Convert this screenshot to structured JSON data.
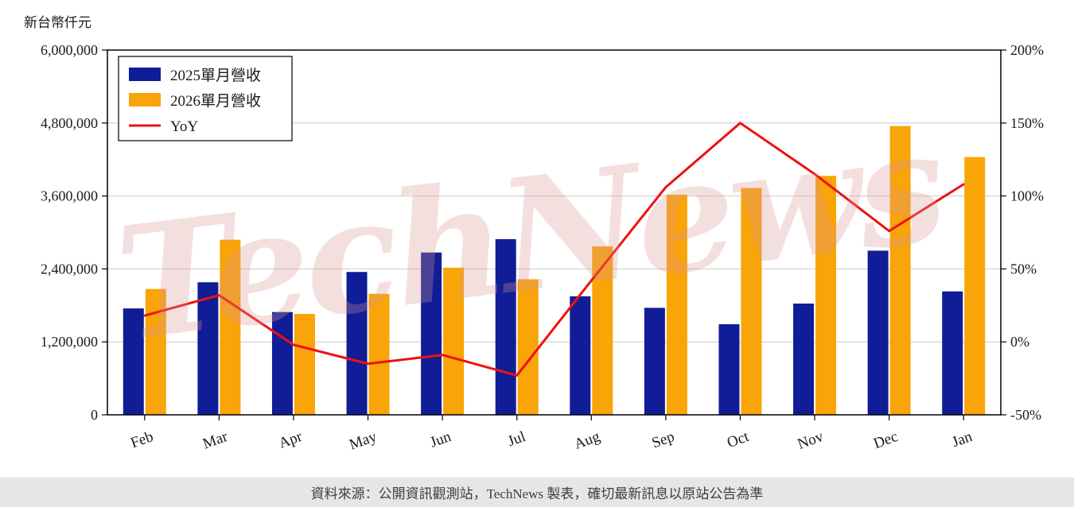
{
  "chart_data": {
    "type": "bar",
    "unit_label": "新台幣仟元",
    "categories": [
      "Feb",
      "Mar",
      "Apr",
      "May",
      "Jun",
      "Jul",
      "Aug",
      "Sep",
      "Oct",
      "Nov",
      "Dec",
      "Jan"
    ],
    "series": [
      {
        "name": "2025單月營收",
        "type": "bar",
        "axis": "left",
        "color": "#101d96",
        "values": [
          1750000,
          2180000,
          1690000,
          2350000,
          2670000,
          2890000,
          1950000,
          1760000,
          1490000,
          1830000,
          2700000,
          2030000
        ]
      },
      {
        "name": "2026單月營收",
        "type": "bar",
        "axis": "left",
        "color": "#f9a408",
        "values": [
          2070000,
          2880000,
          1660000,
          1990000,
          2420000,
          2230000,
          2770000,
          3620000,
          3730000,
          3930000,
          4750000,
          4240000
        ]
      },
      {
        "name": "YoY",
        "type": "line",
        "axis": "right",
        "color": "#ee1111",
        "values": [
          18,
          32,
          -2,
          -15,
          -9,
          -23,
          42,
          106,
          150,
          115,
          76,
          108
        ]
      }
    ],
    "left_axis": {
      "min": 0,
      "max": 6000000,
      "step": 1200000,
      "tick_labels": [
        "0",
        "1,200,000",
        "2,400,000",
        "3,600,000",
        "4,800,000",
        "6,000,000"
      ]
    },
    "right_axis": {
      "min": -50,
      "max": 200,
      "step": 50,
      "tick_labels": [
        "-50%",
        "0%",
        "50%",
        "100%",
        "150%",
        "200%"
      ]
    },
    "grid": true,
    "legend_position": "top-left"
  },
  "watermark": "TechNews",
  "footer": {
    "text": "資料來源：公開資訊觀測站，TechNews 製表，確切最新訊息以原站公告為準"
  }
}
